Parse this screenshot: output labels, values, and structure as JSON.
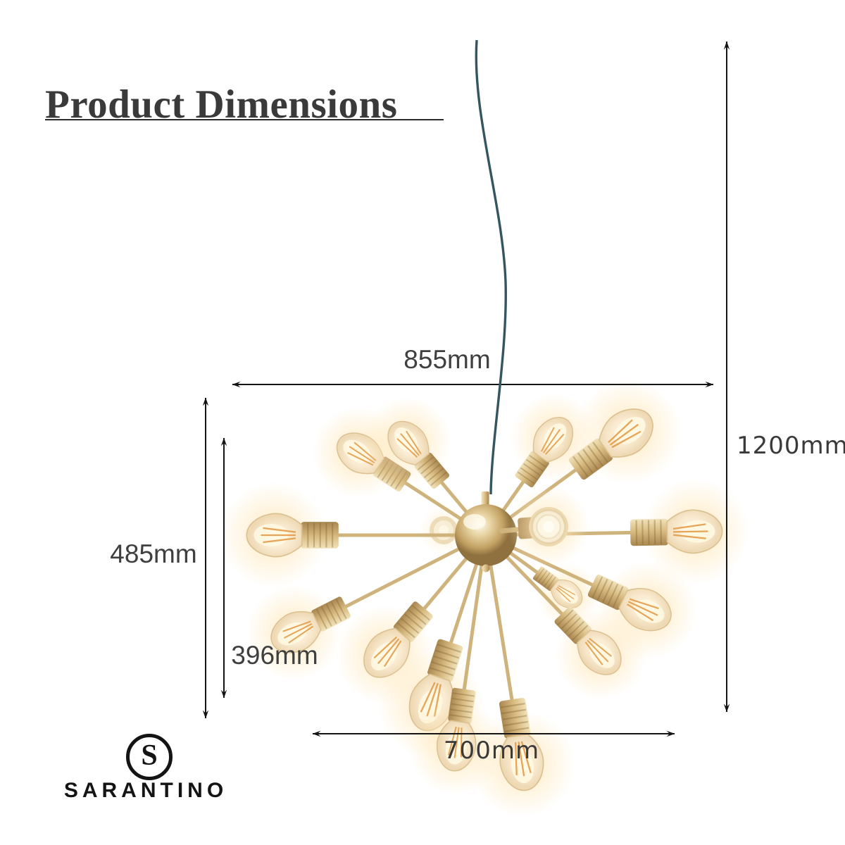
{
  "page": {
    "title": "Product Dimensions"
  },
  "dimensions": {
    "width_top": "855mm",
    "height_total": "1200mm",
    "height_fixture": "485mm",
    "height_inner": "396mm",
    "width_bottom": "700mm"
  },
  "brand": {
    "logo_letter": "S",
    "name": "SARANTINO"
  },
  "illustration": {
    "name": "sputnik-chandelier-with-edison-bulbs"
  },
  "colors": {
    "text": "#3f3f3f",
    "title": "#3a3a3a",
    "dimension_line": "#141414",
    "brass": "#d9bc82",
    "brass_dark": "#a5834c",
    "brass_light": "#f3e6c0",
    "rod": "#cfb37c",
    "glass_edge": "#dcc191",
    "glow": "#ffe9be",
    "filament": "#e2973f",
    "cord": "#355560",
    "logo": "#141414"
  }
}
